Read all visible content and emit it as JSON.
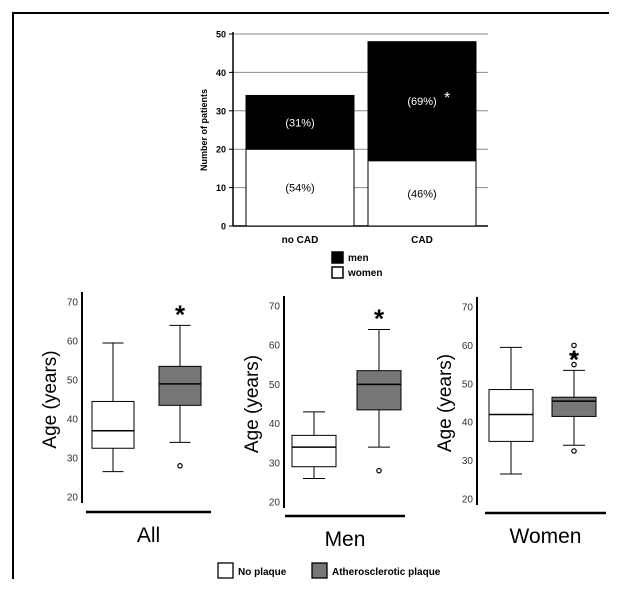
{
  "chart_data": [
    {
      "type": "bar",
      "stacked": true,
      "ylabel": "Number of patients",
      "ylim": [
        0,
        50
      ],
      "yticks": [
        0,
        10,
        20,
        30,
        40,
        50
      ],
      "grid": true,
      "categories": [
        "no CAD",
        "CAD"
      ],
      "series": [
        {
          "name": "women",
          "values": [
            20,
            17
          ],
          "labels": [
            "(54%)",
            "(46%)"
          ],
          "color": "#ffffff"
        },
        {
          "name": "men",
          "values": [
            14,
            31
          ],
          "labels": [
            "(31%)",
            "(69%)"
          ],
          "color": "#000000"
        }
      ],
      "annotations": [
        {
          "category": "CAD",
          "series": "men",
          "text": "*"
        }
      ],
      "legend": {
        "placement": "bottom",
        "entries": [
          "men",
          "women"
        ]
      }
    },
    {
      "type": "box",
      "xlabel": "All",
      "ylabel": "Age (years)",
      "ylim": [
        20,
        70
      ],
      "yticks": [
        20,
        30,
        40,
        50,
        60,
        70
      ],
      "groups": [
        {
          "name": "No plaque",
          "min": 26.5,
          "q1": 32.5,
          "median": 37,
          "q3": 44.5,
          "max": 59.5,
          "outliers": []
        },
        {
          "name": "Atherosclerotic plaque",
          "min": 34,
          "q1": 43.5,
          "median": 49,
          "q3": 53.5,
          "max": 64,
          "outliers": [
            28
          ],
          "marker": "*"
        }
      ]
    },
    {
      "type": "box",
      "xlabel": "Men",
      "ylabel": "Age (years)",
      "ylim": [
        20,
        70
      ],
      "yticks": [
        20,
        30,
        40,
        50,
        60,
        70
      ],
      "groups": [
        {
          "name": "No plaque",
          "min": 26,
          "q1": 29,
          "median": 34,
          "q3": 37,
          "max": 43,
          "outliers": []
        },
        {
          "name": "Atherosclerotic plaque",
          "min": 34,
          "q1": 43.5,
          "median": 50,
          "q3": 53.5,
          "max": 64,
          "outliers": [
            28
          ],
          "marker": "*"
        }
      ]
    },
    {
      "type": "box",
      "xlabel": "Women",
      "ylabel": "Age (years)",
      "ylim": [
        20,
        70
      ],
      "yticks": [
        20,
        30,
        40,
        50,
        60,
        70
      ],
      "groups": [
        {
          "name": "No plaque",
          "min": 26.5,
          "q1": 35,
          "median": 42,
          "q3": 48.5,
          "max": 59.5,
          "outliers": []
        },
        {
          "name": "Atherosclerotic plaque",
          "min": 34,
          "q1": 41.5,
          "median": 45.5,
          "q3": 46.5,
          "max": 53.5,
          "outliers": [
            32.5,
            55,
            57.5,
            60
          ],
          "marker": "*"
        }
      ]
    }
  ],
  "legend": [
    {
      "label": "No plaque",
      "color": "#ffffff"
    },
    {
      "label": "Atherosclerotic plaque",
      "color": "#777777"
    }
  ]
}
